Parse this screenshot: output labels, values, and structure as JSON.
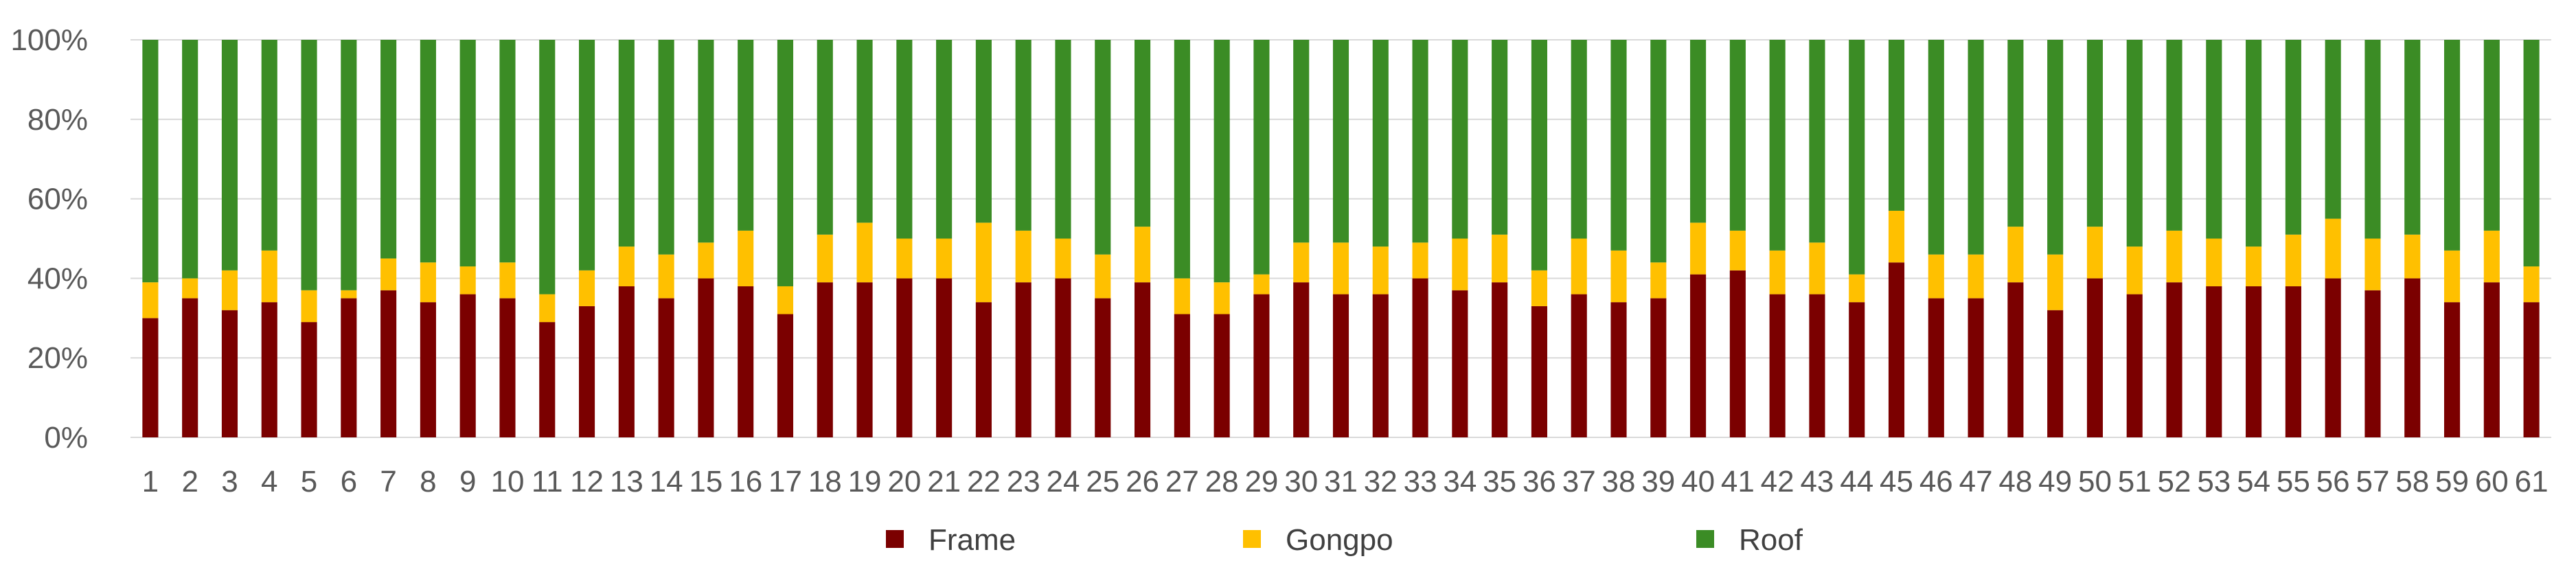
{
  "chart_data": {
    "type": "bar",
    "stacked": "percent",
    "title": "",
    "xlabel": "",
    "ylabel": "",
    "ylim": [
      0,
      100
    ],
    "yticks": [
      "0%",
      "20%",
      "40%",
      "60%",
      "80%",
      "100%"
    ],
    "grid": "horizontal",
    "legend_position": "bottom",
    "categories": [
      "1",
      "2",
      "3",
      "4",
      "5",
      "6",
      "7",
      "8",
      "9",
      "10",
      "11",
      "12",
      "13",
      "14",
      "15",
      "16",
      "17",
      "18",
      "19",
      "20",
      "21",
      "22",
      "23",
      "24",
      "25",
      "26",
      "27",
      "28",
      "29",
      "30",
      "31",
      "32",
      "33",
      "34",
      "35",
      "36",
      "37",
      "38",
      "39",
      "40",
      "41",
      "42",
      "43",
      "44",
      "45",
      "46",
      "47",
      "48",
      "49",
      "50",
      "51",
      "52",
      "53",
      "54",
      "55",
      "56",
      "57",
      "58",
      "59",
      "60",
      "61"
    ],
    "series": [
      {
        "name": "Frame",
        "color": "#7b0000",
        "values": [
          30,
          35,
          32,
          34,
          29,
          35,
          37,
          34,
          36,
          35,
          29,
          33,
          38,
          35,
          40,
          38,
          31,
          39,
          39,
          40,
          40,
          34,
          39,
          40,
          35,
          39,
          31,
          31,
          36,
          39,
          36,
          36,
          40,
          37,
          39,
          33,
          36,
          34,
          35,
          41,
          42,
          36,
          36,
          34,
          44,
          35,
          35,
          39,
          32,
          40,
          36,
          39,
          38,
          38,
          38,
          40,
          37,
          40,
          34,
          39,
          34
        ]
      },
      {
        "name": "Gongpo",
        "color": "#ffc000",
        "values": [
          9,
          5,
          10,
          13,
          8,
          2,
          8,
          10,
          7,
          9,
          7,
          9,
          10,
          11,
          9,
          14,
          7,
          12,
          15,
          10,
          10,
          20,
          13,
          10,
          11,
          14,
          9,
          8,
          5,
          10,
          13,
          12,
          9,
          13,
          12,
          9,
          14,
          13,
          9,
          13,
          10,
          11,
          13,
          7,
          13,
          11,
          11,
          14,
          14,
          13,
          12,
          13,
          12,
          10,
          13,
          15,
          13,
          11,
          13,
          13,
          9
        ]
      },
      {
        "name": "Roof",
        "color": "#3b8c25",
        "values": [
          61,
          60,
          58,
          53,
          63,
          63,
          55,
          56,
          57,
          56,
          64,
          58,
          52,
          54,
          51,
          48,
          62,
          49,
          46,
          50,
          50,
          46,
          48,
          50,
          54,
          47,
          60,
          61,
          59,
          51,
          51,
          52,
          51,
          50,
          49,
          58,
          50,
          53,
          56,
          46,
          48,
          53,
          51,
          59,
          43,
          54,
          54,
          47,
          54,
          47,
          52,
          48,
          50,
          52,
          49,
          45,
          50,
          49,
          53,
          48,
          57
        ]
      }
    ]
  }
}
